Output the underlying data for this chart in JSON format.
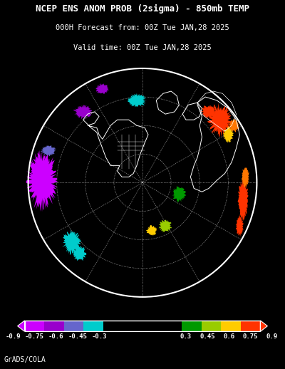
{
  "title_line1": "NCEP ENS ANOM PROB (2sigma) - 850mb TEMP",
  "title_line2": "000H Forecast from: 00Z Tue JAN,28 2025",
  "title_line3": "Valid time: 00Z Tue JAN,28 2025",
  "credit": "GrADS/COLA",
  "background_color": "#000000",
  "map_bg_color": "#000000",
  "figsize": [
    4.0,
    5.18
  ],
  "dpi": 100,
  "cb_colors": [
    "#cc00ff",
    "#9900cc",
    "#6666cc",
    "#00cccc",
    "#000000",
    "#009900",
    "#99cc00",
    "#ffcc00",
    "#ff3300"
  ],
  "cb_boundaries": [
    -0.9,
    -0.75,
    -0.6,
    -0.45,
    -0.3,
    0.3,
    0.45,
    0.6,
    0.75,
    0.9
  ],
  "cb_labels": [
    "-0.9",
    "-0.75",
    "-0.6",
    "-0.45",
    "-0.3",
    "0.3",
    "0.45",
    "0.6",
    "0.75",
    "0.9"
  ],
  "cb_left_tri_color": "#cc00ff",
  "cb_right_tri_color": "#ff3300",
  "grid_color": "#ffffff",
  "continent_color": "#ffffff",
  "title_fontsize": 9,
  "subtitle_fontsize": 7.5,
  "credit_fontsize": 7
}
